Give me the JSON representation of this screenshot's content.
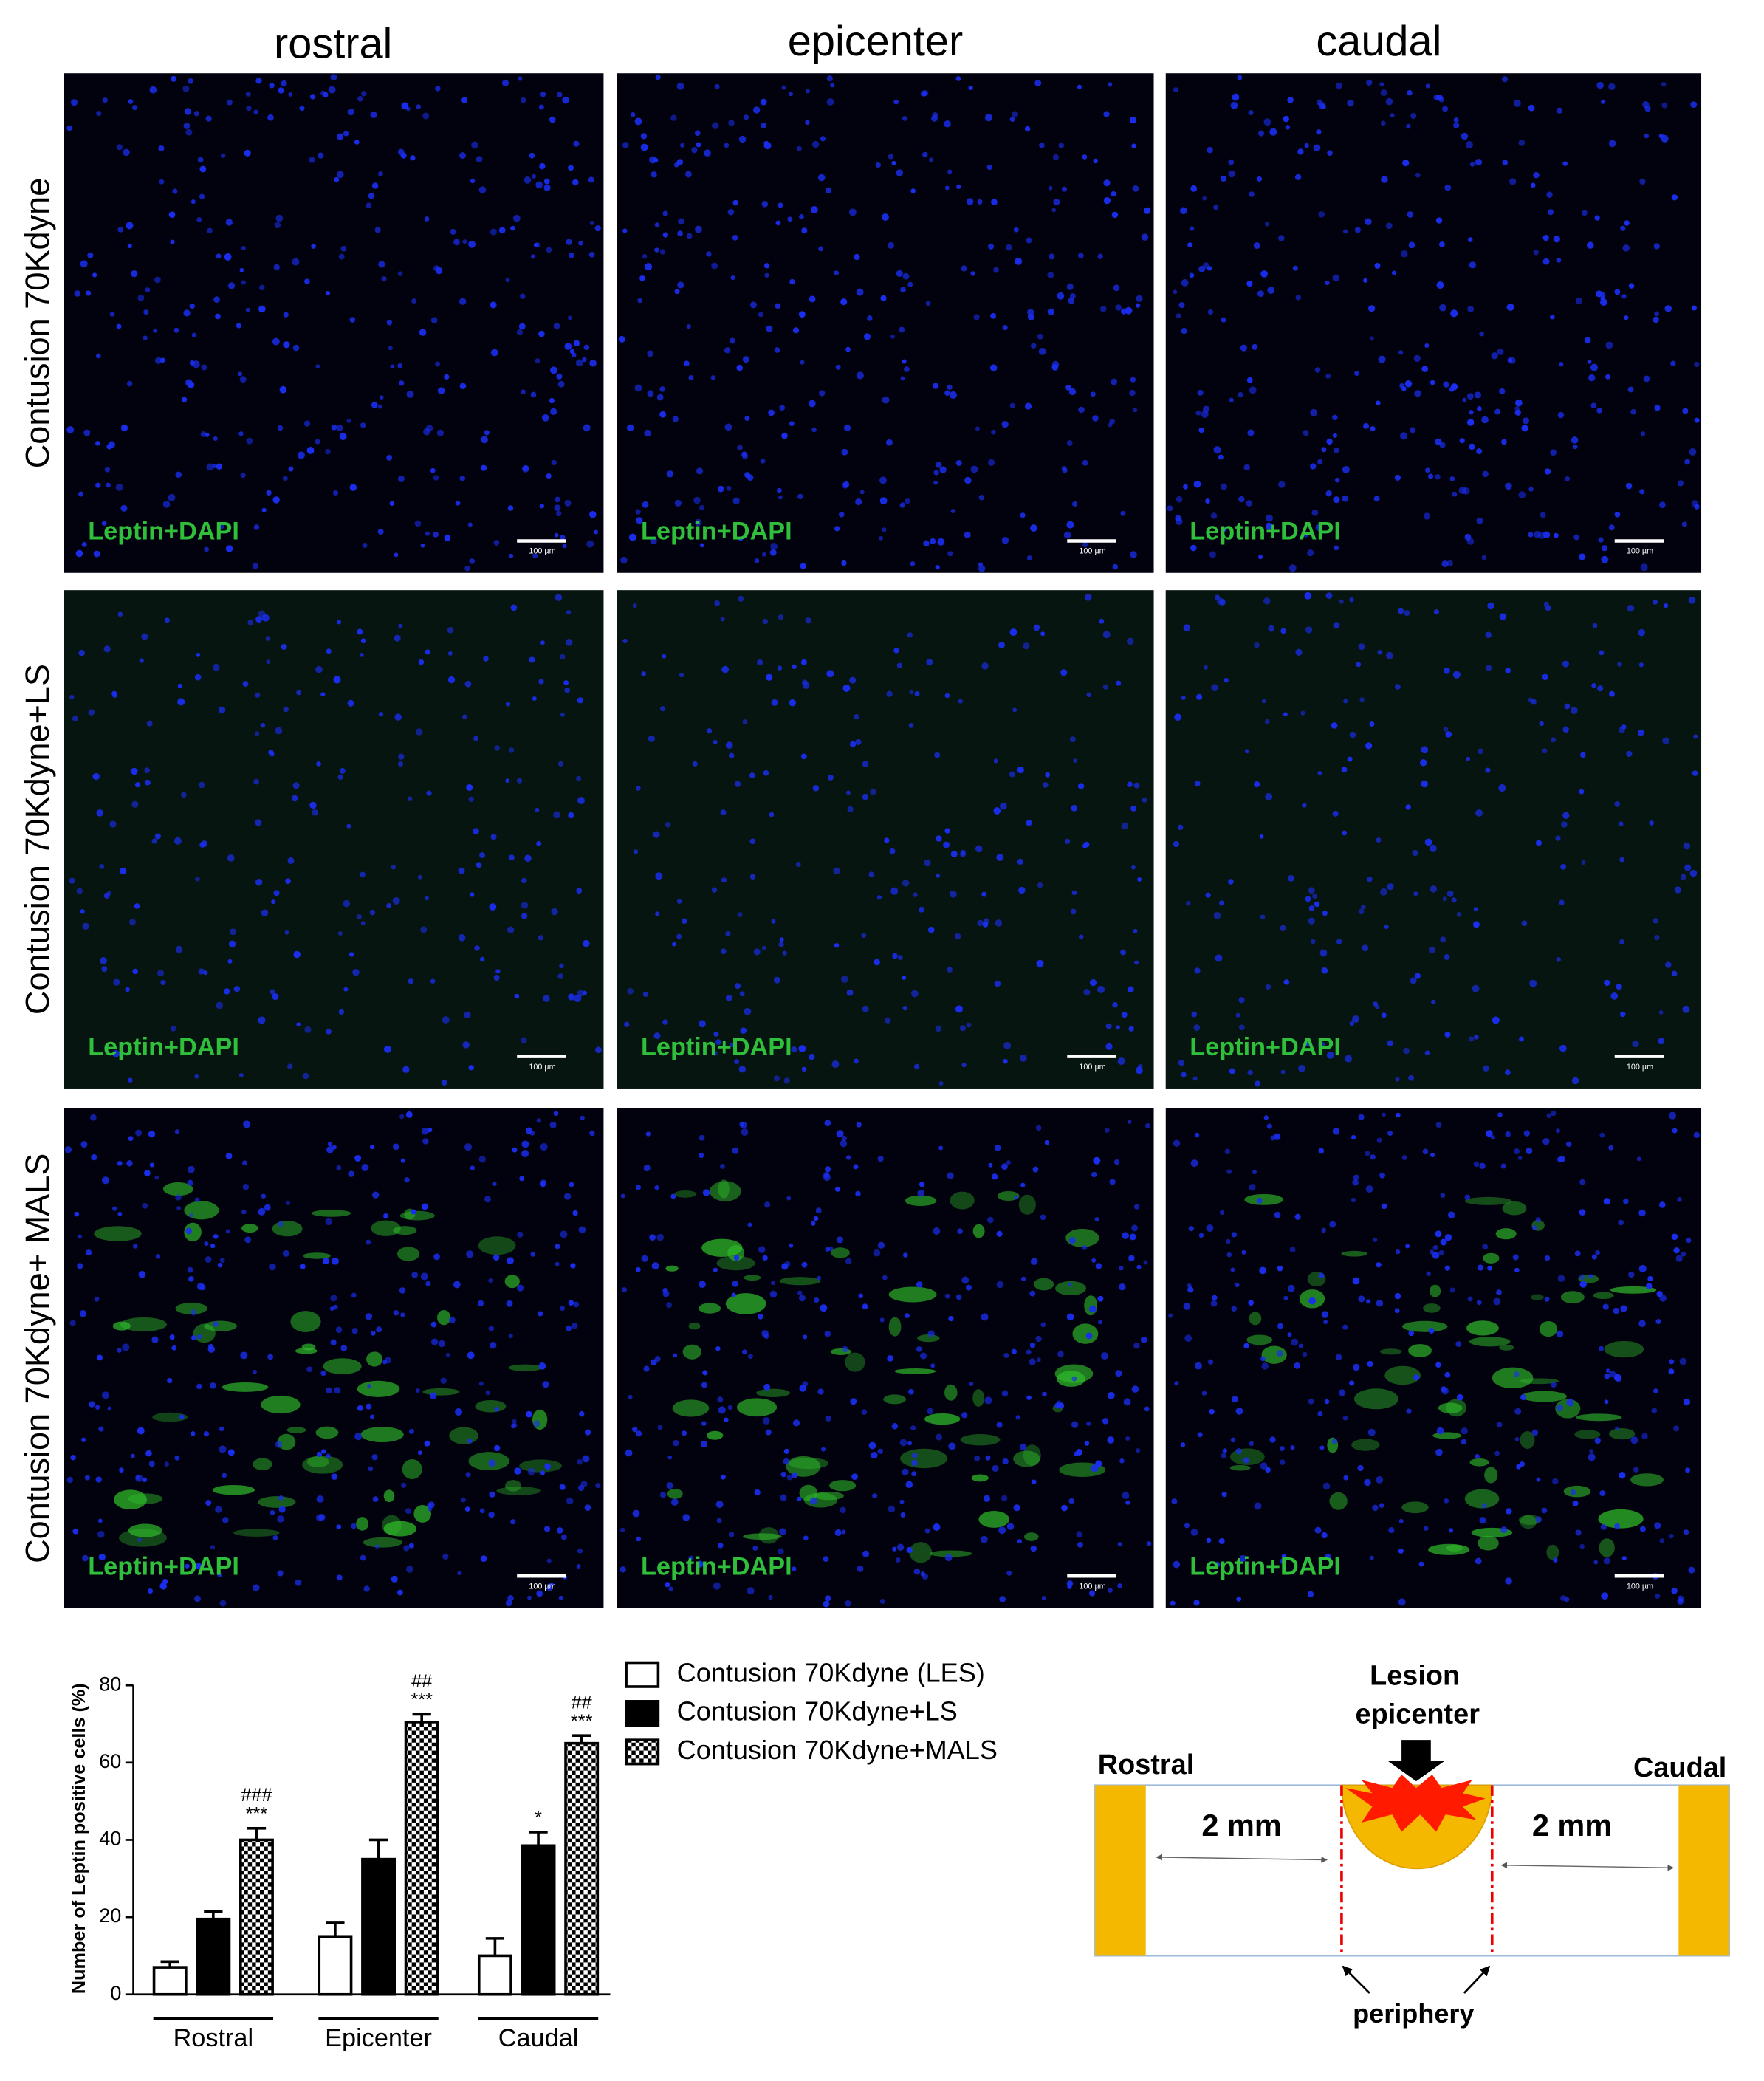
{
  "figure": {
    "columns": [
      "rostral",
      "epicenter",
      "caudal"
    ],
    "rows": [
      "Contusion 70Kdyne",
      "Contusion 70Kdyne+LS",
      "Contusion 70Kdyne+ MALS"
    ],
    "image_label": "Leptin+DAPI",
    "scale_bar": "100 µm"
  },
  "chart_data": {
    "type": "bar",
    "y_label": "Number of Leptin positive cells (%)",
    "categories": [
      "Rostral",
      "Epicenter",
      "Caudal"
    ],
    "ylim": [
      0,
      80
    ],
    "yticks": [
      0,
      20,
      40,
      60,
      80
    ],
    "series": [
      {
        "name": "Contusion 70Kdyne (LES)",
        "color": "#ffffff",
        "values": [
          7,
          15,
          10
        ],
        "errors": [
          1.5,
          3.5,
          4.5
        ]
      },
      {
        "name": "Contusion 70Kdyne+LS",
        "color": "#000000",
        "values": [
          19.5,
          35,
          38.5
        ],
        "errors": [
          2,
          5,
          3.5
        ],
        "annotations": [
          null,
          null,
          [
            "*"
          ]
        ]
      },
      {
        "name": "Contusion 70Kdyne+MALS",
        "color": "#000000",
        "pattern": "checkerboard",
        "values": [
          40,
          70.5,
          65
        ],
        "errors": [
          3,
          2,
          2
        ],
        "annotations": [
          [
            "###",
            "***"
          ],
          [
            "##",
            "***"
          ],
          [
            "##",
            "***"
          ]
        ]
      }
    ]
  },
  "diagram": {
    "lesion_label": [
      "Lesion",
      "epicenter"
    ],
    "left_label": "Rostral",
    "right_label": "Caudal",
    "left_distance": "2 mm",
    "right_distance": "2 mm",
    "periphery_label": "periphery"
  }
}
